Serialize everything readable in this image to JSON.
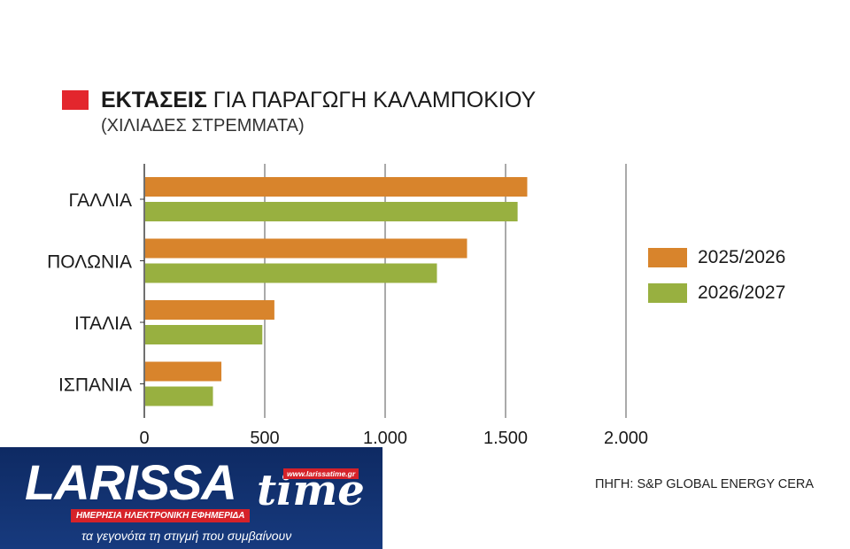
{
  "title": {
    "bold": "ΕΚΤΑΣΕΙΣ",
    "rest": "ΓΙΑ ΠΑΡΑΓΩΓΗ ΚΑΛΑΜΠΟΚΙΟΥ",
    "subtitle": "(ΧΙΛΙΑΔΕΣ ΣΤΡΕΜΜΑΤΑ)"
  },
  "colors": {
    "title_swatch": "#e3262d",
    "series_2025": "#d8842c",
    "series_2026": "#98b040"
  },
  "source": "ΠΗΓΗ: S&P GLOBAL ENERGY CERA",
  "logo": {
    "word": "LARISSA",
    "word2": "time",
    "url": "www.larissatime.gr",
    "band": "ΗΜΕΡΗΣΙΑ ΗΛΕΚΤΡΟΝΙΚΗ ΕΦΗΜΕΡΙΔΑ",
    "tagline": "τα γεγονότα τη στιγμή που συμβαίνουν"
  },
  "chart_data": {
    "type": "bar",
    "orientation": "horizontal",
    "title": "ΕΚΤΑΣΕΙΣ ΓΙΑ ΠΑΡΑΓΩΓΗ ΚΑΛΑΜΠΟΚΙΟΥ",
    "subtitle": "(ΧΙΛΙΑΔΕΣ ΣΤΡΕΜΜΑΤΑ)",
    "categories": [
      "ΓΑΛΛΙΑ",
      "ΠΟΛΩΝΙΑ",
      "ΙΤΑΛΙΑ",
      "ΙΣΠΑΝΙΑ"
    ],
    "series": [
      {
        "name": "2025/2026",
        "values": [
          1590,
          1340,
          540,
          320
        ],
        "color": "#d8842c"
      },
      {
        "name": "2026/2027",
        "values": [
          1550,
          1215,
          490,
          285
        ],
        "color": "#98b040"
      }
    ],
    "xlim": [
      0,
      2000
    ],
    "xticks": [
      0,
      500,
      1000,
      1500,
      2000
    ],
    "xtick_labels": [
      "0",
      "500",
      "1.000",
      "1.500",
      "2.000"
    ],
    "grid": "vertical",
    "legend": "right"
  }
}
